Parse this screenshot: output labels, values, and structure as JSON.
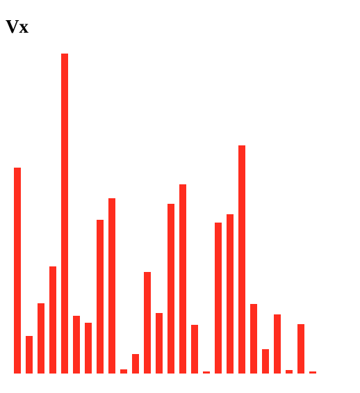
{
  "chart_data": {
    "type": "bar",
    "title": "Vx",
    "values": [
      296,
      54,
      101,
      154,
      460,
      83,
      73,
      221,
      252,
      6,
      28,
      146,
      87,
      244,
      272,
      70,
      3,
      217,
      229,
      328,
      100,
      35,
      85,
      5,
      71,
      3
    ],
    "color": "#ff2d1f",
    "ylim": [
      0,
      460
    ]
  }
}
